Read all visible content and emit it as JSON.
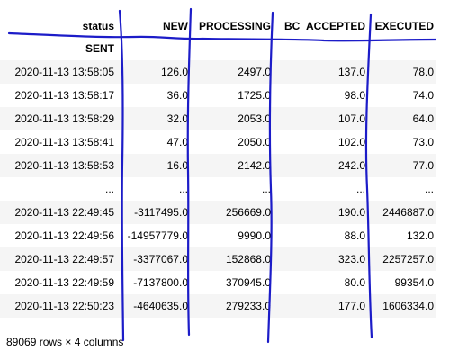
{
  "dataframe": {
    "columns_name": "status",
    "index_name": "SENT",
    "columns": [
      "NEW",
      "PROCESSING",
      "BC_ACCEPTED",
      "EXECUTED"
    ],
    "rows": [
      {
        "index": "2020-11-13 13:58:05",
        "values": [
          "126.0",
          "2497.0",
          "137.0",
          "78.0"
        ]
      },
      {
        "index": "2020-11-13 13:58:17",
        "values": [
          "36.0",
          "1725.0",
          "98.0",
          "74.0"
        ]
      },
      {
        "index": "2020-11-13 13:58:29",
        "values": [
          "32.0",
          "2053.0",
          "107.0",
          "64.0"
        ]
      },
      {
        "index": "2020-11-13 13:58:41",
        "values": [
          "47.0",
          "2050.0",
          "102.0",
          "73.0"
        ]
      },
      {
        "index": "2020-11-13 13:58:53",
        "values": [
          "16.0",
          "2142.0",
          "242.0",
          "77.0"
        ]
      },
      {
        "index": "...",
        "values": [
          "...",
          "...",
          "...",
          "..."
        ]
      },
      {
        "index": "2020-11-13 22:49:45",
        "values": [
          "-3117495.0",
          "256669.0",
          "190.0",
          "2446887.0"
        ]
      },
      {
        "index": "2020-11-13 22:49:56",
        "values": [
          "-14957779.0",
          "9990.0",
          "88.0",
          "132.0"
        ]
      },
      {
        "index": "2020-11-13 22:49:57",
        "values": [
          "-3377067.0",
          "152868.0",
          "323.0",
          "2257257.0"
        ]
      },
      {
        "index": "2020-11-13 22:49:59",
        "values": [
          "-7137800.0",
          "370945.0",
          "80.0",
          "99354.0"
        ]
      },
      {
        "index": "2020-11-13 22:50:23",
        "values": [
          "-4640635.0",
          "279233.0",
          "177.0",
          "1606334.0"
        ]
      }
    ],
    "shape_text": "89069 rows × 4 columns"
  },
  "annotation": {
    "color": "#1c1cc8"
  }
}
